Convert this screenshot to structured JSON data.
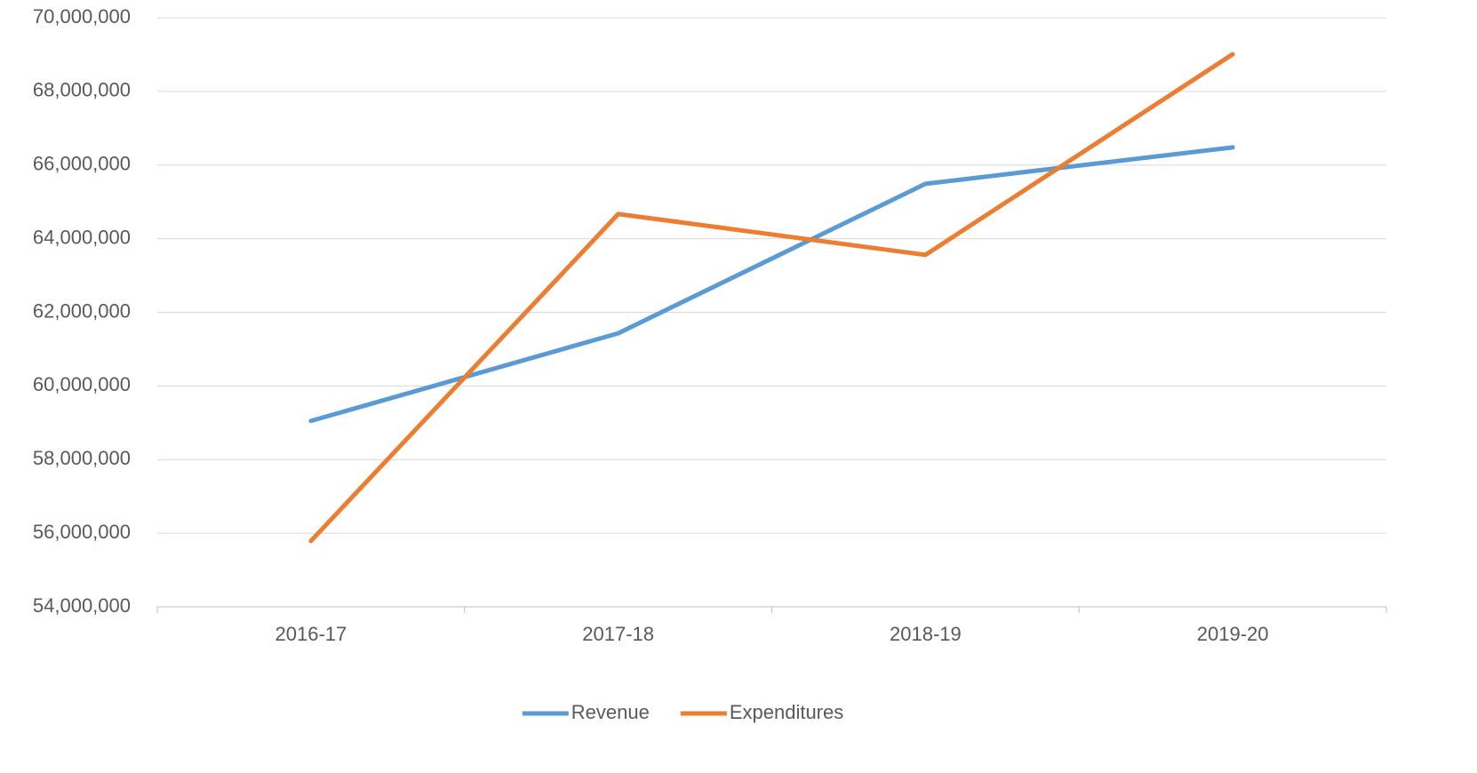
{
  "chart_data": {
    "type": "line",
    "categories": [
      "2016-17",
      "2017-18",
      "2018-19",
      "2019-20"
    ],
    "series": [
      {
        "name": "Revenue",
        "color": "#5b9bd5",
        "values": [
          59050000,
          61430000,
          65490000,
          66480000
        ]
      },
      {
        "name": "Expenditures",
        "color": "#ed7d31",
        "values": [
          55790000,
          64670000,
          63560000,
          69010000
        ]
      }
    ],
    "ylim": [
      54000000,
      70000000
    ],
    "yticks": [
      {
        "value": 54000000,
        "label": "54,000,000"
      },
      {
        "value": 56000000,
        "label": "56,000,000"
      },
      {
        "value": 58000000,
        "label": "58,000,000"
      },
      {
        "value": 60000000,
        "label": "60,000,000"
      },
      {
        "value": 62000000,
        "label": "62,000,000"
      },
      {
        "value": 64000000,
        "label": "64,000,000"
      },
      {
        "value": 66000000,
        "label": "66,000,000"
      },
      {
        "value": 68000000,
        "label": "68,000,000"
      },
      {
        "value": 70000000,
        "label": "70,000,000"
      }
    ],
    "grid": true,
    "legend": "bottom"
  }
}
